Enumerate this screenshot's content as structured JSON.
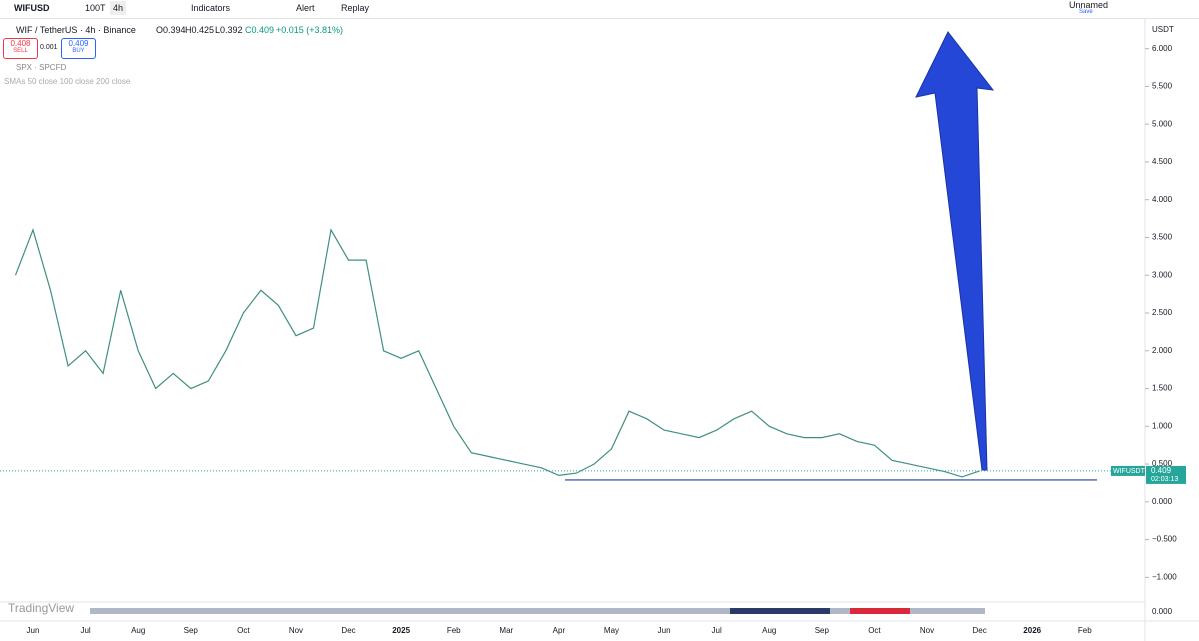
{
  "toolbar": {
    "symbol": "WIFUSD",
    "interval_count": "100T",
    "interval": "4h",
    "indicators": "Indicators",
    "alert": "Alert",
    "replay": "Replay",
    "layout_name": "Unnamed",
    "save": "Save"
  },
  "legend": {
    "title": "WIF / TetherUS · 4h · Binance",
    "open": "O0.394",
    "high": "H0.425",
    "low": "L0.392",
    "close": "C0.409",
    "change": "+0.015 (+3.81%)",
    "sell_price": "0.408",
    "sell": "SELL",
    "spread": "0.001",
    "buy_price": "0.409",
    "buy": "BUY",
    "spx": "SPX · SPCFD",
    "smas": "SMAs 50 close 100 close 200 close"
  },
  "price_tag": {
    "symbol": "WIFUSDT",
    "price": "0.409",
    "countdown": "02:03:13"
  },
  "lower_pane": {
    "axis_label": "0.000",
    "logo": "TradingView"
  },
  "chart_data": {
    "type": "line",
    "currency": "USDT",
    "color": "#3f8f84",
    "hline": 0.29,
    "hline_color": "#1e3fa8",
    "categories": [
      null,
      "Jun",
      null,
      null,
      "Jul",
      null,
      null,
      "Aug",
      null,
      null,
      "Sep",
      null,
      null,
      "Oct",
      null,
      null,
      "Nov",
      null,
      null,
      "Dec",
      null,
      null,
      "2025",
      null,
      null,
      "Feb",
      null,
      null,
      "Mar",
      null,
      null,
      "Apr",
      null,
      null,
      "May",
      null,
      null,
      "Jun",
      null,
      null,
      "Jul",
      null,
      null,
      "Aug",
      null,
      null,
      "Sep",
      null,
      null,
      "Oct",
      null,
      null,
      "Nov",
      null,
      null,
      "Dec",
      null,
      null,
      "2026",
      null,
      null,
      "Feb",
      null
    ],
    "values": [
      3.0,
      3.6,
      2.8,
      1.8,
      2.0,
      1.7,
      2.8,
      2.0,
      1.5,
      1.7,
      1.5,
      1.6,
      2.0,
      2.5,
      2.8,
      2.6,
      2.2,
      2.3,
      3.6,
      3.2,
      3.2,
      2.0,
      1.9,
      2.0,
      1.5,
      1.0,
      0.65,
      0.6,
      0.55,
      0.5,
      0.45,
      0.35,
      0.38,
      0.5,
      0.7,
      1.2,
      1.1,
      0.95,
      0.9,
      0.85,
      0.95,
      1.1,
      1.2,
      1.0,
      0.9,
      0.85,
      0.85,
      0.9,
      0.8,
      0.75,
      0.55,
      0.5,
      0.45,
      0.4,
      0.33,
      0.409,
      null,
      null,
      null,
      null,
      null,
      null,
      null
    ],
    "ylim": [
      -1.3,
      6.3
    ],
    "yticks": [
      {
        "value": 6,
        "label": "6.000"
      },
      {
        "value": 5.5,
        "label": "5.500"
      },
      {
        "value": 5,
        "label": "5.000"
      },
      {
        "value": 4.5,
        "label": "4.500"
      },
      {
        "value": 4,
        "label": "4.000"
      },
      {
        "value": 3.5,
        "label": "3.500"
      },
      {
        "value": 3,
        "label": "3.000"
      },
      {
        "value": 2.5,
        "label": "2.500"
      },
      {
        "value": 2,
        "label": "2.000"
      },
      {
        "value": 1.5,
        "label": "1.500"
      },
      {
        "value": 1,
        "label": "1.000"
      },
      {
        "value": 0.5,
        "label": "0.500"
      },
      {
        "value": 0,
        "label": "0.000"
      },
      {
        "value": -0.5,
        "label": "−0.500"
      },
      {
        "value": -1,
        "label": "−1.000"
      }
    ]
  }
}
